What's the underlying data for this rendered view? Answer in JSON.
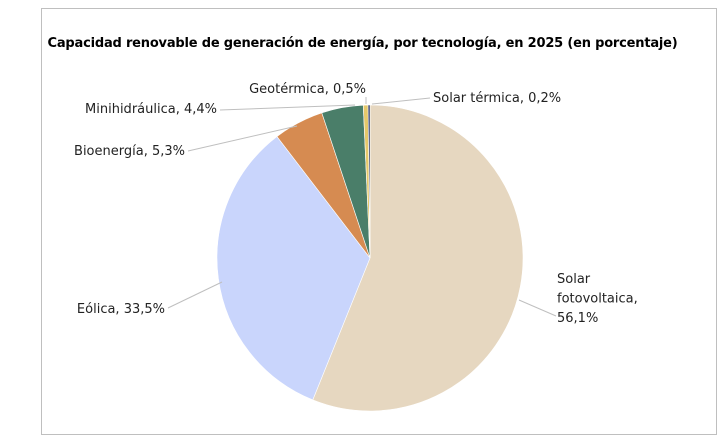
{
  "chart_data": {
    "type": "pie",
    "title": "Capacidad renovable de generación de energía, por tecnología, en 2025 (en porcentaje)",
    "start": "12 o'clock, clockwise",
    "slices": [
      {
        "name": "Solar fotovoltaica",
        "value": 56.1,
        "label_lines": [
          "Solar",
          "fotovoltaica,",
          "56,1%"
        ],
        "color": "#e6d7c0"
      },
      {
        "name": "Eólica",
        "value": 33.5,
        "label_lines": [
          "Eólica, 33,5%"
        ],
        "color": "#c9d5fc"
      },
      {
        "name": "Bioenergía",
        "value": 5.3,
        "label_lines": [
          "Bioenergía, 5,3%"
        ],
        "color": "#d68b51"
      },
      {
        "name": "Minihidráulica",
        "value": 4.4,
        "label_lines": [
          "Minihidráulica, 4,4%"
        ],
        "color": "#4a7e69"
      },
      {
        "name": "Geotérmica",
        "value": 0.5,
        "label_lines": [
          "Geotérmica, 0,5%"
        ],
        "color": "#e5c86a"
      },
      {
        "name": "Solar térmica",
        "value": 0.2,
        "label_lines": [
          "Solar térmica, 0,2%"
        ],
        "color": "#1e2a5a"
      }
    ],
    "legend": "none (data labels with leader lines)"
  }
}
